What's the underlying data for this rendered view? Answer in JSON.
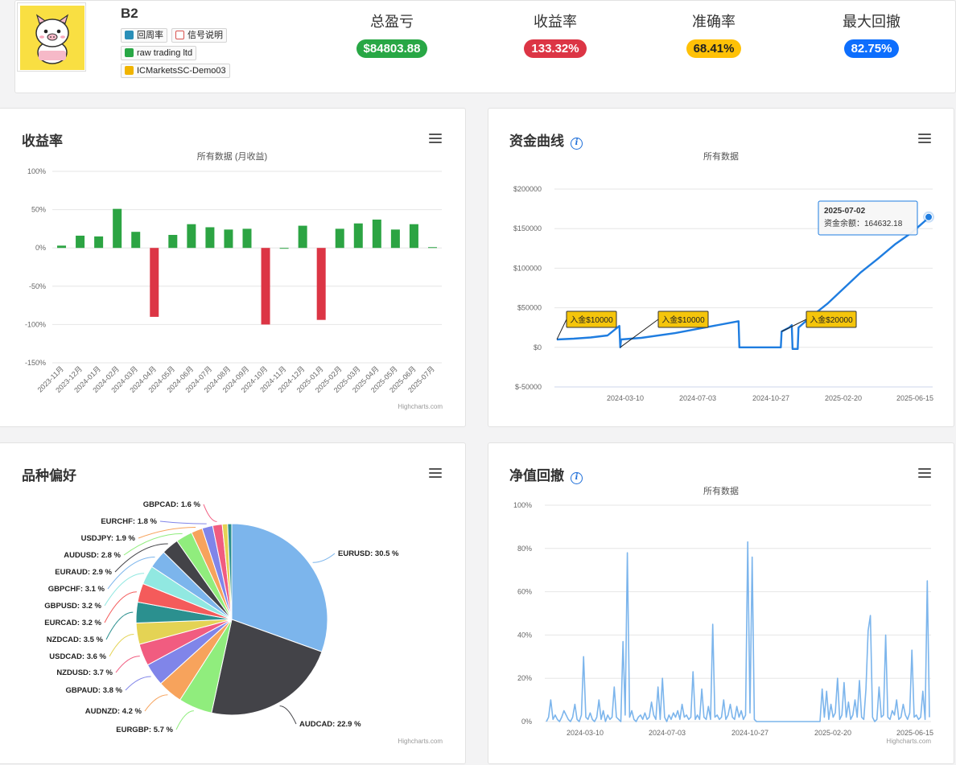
{
  "header": {
    "name": "B2",
    "tags": [
      {
        "label": "回周率",
        "icon": "user-icon",
        "color": "#2a8fb8"
      },
      {
        "label": "信号说明",
        "icon": "message-icon",
        "color": "#d9534f"
      },
      {
        "label": "raw trading ltd",
        "icon": "broker-icon",
        "color": "#28a745"
      },
      {
        "label": "ICMarketsSC-Demo03",
        "icon": "server-icon",
        "color": "#f0b400"
      }
    ],
    "stats": [
      {
        "label": "总盈亏",
        "value": "$84803.88",
        "color": "#28a745"
      },
      {
        "label": "收益率",
        "value": "133.32%",
        "color": "#dc3545"
      },
      {
        "label": "准确率",
        "value": "68.41%",
        "color": "#ffc107"
      },
      {
        "label": "最大回撤",
        "value": "82.75%",
        "color": "#0d6efd"
      }
    ]
  },
  "panels": {
    "returns": {
      "title": "收益率",
      "subtitle": "所有数据 (月收益)",
      "credit": "Highcharts.com"
    },
    "equity": {
      "title": "资金曲线",
      "subtitle": "所有数据",
      "credit": ""
    },
    "symbols": {
      "title": "品种偏好",
      "credit": "Highcharts.com"
    },
    "drawdown": {
      "title": "净值回撤",
      "subtitle": "所有数据",
      "credit": "Highcharts.com"
    }
  },
  "chart_data": [
    {
      "type": "bar",
      "title": "收益率",
      "subtitle": "所有数据 (月收益)",
      "categories": [
        "2023-11月",
        "2023-12月",
        "2024-01月",
        "2024-02月",
        "2024-03月",
        "2024-04月",
        "2024-05月",
        "2024-06月",
        "2024-07月",
        "2024-08月",
        "2024-09月",
        "2024-10月",
        "2024-11月",
        "2024-12月",
        "2025-01月",
        "2025-02月",
        "2025-03月",
        "2025-04月",
        "2025-05月",
        "2025-06月",
        "2025-07月"
      ],
      "values": [
        3,
        16,
        15,
        51,
        21,
        -90,
        17,
        31,
        27,
        24,
        25,
        -100,
        0,
        29,
        -94,
        25,
        32,
        37,
        24,
        31,
        1
      ],
      "yticks": [
        "100%",
        "50%",
        "0%",
        "-50%",
        "-100%",
        "-150%"
      ],
      "ylim": [
        -150,
        100
      ],
      "colors": {
        "positive": "#2ca443",
        "negative": "#dc3545"
      }
    },
    {
      "type": "line",
      "title": "资金曲线",
      "subtitle": "所有数据",
      "x_ticks": [
        "2024-03-10",
        "2024-07-03",
        "2024-10-27",
        "2025-02-20",
        "2025-06-15"
      ],
      "yticks": [
        "$200000",
        "$150000",
        "$100000",
        "$50000",
        "$0",
        "$-50000"
      ],
      "ylim": [
        -50000,
        200000
      ],
      "series": [
        {
          "values": [
            [
              0,
              10000
            ],
            [
              20,
              11000
            ],
            [
              40,
              12500
            ],
            [
              60,
              15000
            ],
            [
              74,
              27000
            ],
            [
              75,
              0
            ],
            [
              76,
              10000
            ],
            [
              100,
              12000
            ],
            [
              140,
              18000
            ],
            [
              180,
              26000
            ],
            [
              215,
              33000
            ],
            [
              216,
              0
            ],
            [
              265,
              0
            ],
            [
              266,
              20000
            ],
            [
              275,
              25000
            ],
            [
              278,
              28000
            ],
            [
              279,
              -2000
            ],
            [
              285,
              -2000
            ],
            [
              286,
              25000
            ],
            [
              300,
              38000
            ],
            [
              320,
              55000
            ],
            [
              340,
              75000
            ],
            [
              360,
              95000
            ],
            [
              380,
              112000
            ],
            [
              400,
              130000
            ],
            [
              420,
              145000
            ],
            [
              436,
              160000
            ],
            [
              440,
              164632
            ]
          ]
        }
      ],
      "flags": [
        {
          "label": "入金$10000"
        },
        {
          "label": "入金$10000"
        },
        {
          "label": "入金$20000"
        }
      ],
      "tooltip": {
        "date": "2025-07-02",
        "label": "资金余额：",
        "value": "164632.18"
      },
      "color": "#1f7de0"
    },
    {
      "type": "pie",
      "title": "品种偏好",
      "slices": [
        {
          "name": "EURUSD",
          "value": 30.5,
          "label": "EURUSD: 30.5 %",
          "color": "#7cb5ec"
        },
        {
          "name": "AUDCAD",
          "value": 22.9,
          "label": "AUDCAD: 22.9 %",
          "color": "#434348"
        },
        {
          "name": "EURGBP",
          "value": 5.7,
          "label": "EURGBP: 5.7 %",
          "color": "#90ed7d"
        },
        {
          "name": "AUDNZD",
          "value": 4.2,
          "label": "AUDNZD: 4.2 %",
          "color": "#f7a35c"
        },
        {
          "name": "GBPAUD",
          "value": 3.8,
          "label": "GBPAUD: 3.8 %",
          "color": "#8085e9"
        },
        {
          "name": "NZDUSD",
          "value": 3.7,
          "label": "NZDUSD: 3.7 %",
          "color": "#f15c80"
        },
        {
          "name": "USDCAD",
          "value": 3.6,
          "label": "USDCAD: 3.6 %",
          "color": "#e4d354"
        },
        {
          "name": "NZDCAD",
          "value": 3.5,
          "label": "NZDCAD: 3.5 %",
          "color": "#2b908f"
        },
        {
          "name": "EURCAD",
          "value": 3.2,
          "label": "EURCAD: 3.2 %",
          "color": "#f45b5b"
        },
        {
          "name": "GBPUSD",
          "value": 3.2,
          "label": "GBPUSD: 3.2 %",
          "color": "#91e8e1"
        },
        {
          "name": "GBPCHF",
          "value": 3.1,
          "label": "GBPCHF: 3.1 %",
          "color": "#7cb5ec"
        },
        {
          "name": "EURAUD",
          "value": 2.9,
          "label": "EURAUD: 2.9 %",
          "color": "#434348"
        },
        {
          "name": "AUDUSD",
          "value": 2.8,
          "label": "AUDUSD: 2.8 %",
          "color": "#90ed7d"
        },
        {
          "name": "USDJPY",
          "value": 1.9,
          "label": "USDJPY: 1.9 %",
          "color": "#f7a35c"
        },
        {
          "name": "EURCHF",
          "value": 1.8,
          "label": "EURCHF: 1.8 %",
          "color": "#8085e9"
        },
        {
          "name": "GBPCAD",
          "value": 1.6,
          "label": "GBPCAD: 1.6 %",
          "color": "#f15c80"
        },
        {
          "name": "other-1",
          "value": 0.9,
          "label": "",
          "color": "#e4d354"
        },
        {
          "name": "other-2",
          "value": 0.7,
          "label": "",
          "color": "#2b908f"
        }
      ]
    },
    {
      "type": "area",
      "title": "净值回撤",
      "subtitle": "所有数据",
      "x_ticks": [
        "2024-03-10",
        "2024-07-03",
        "2024-10-27",
        "2025-02-20",
        "2025-06-15"
      ],
      "yticks": [
        "100%",
        "80%",
        "60%",
        "40%",
        "20%",
        "0%"
      ],
      "ylim": [
        0,
        100
      ],
      "color": "#7cb5ec",
      "series": [
        {
          "values": [
            0,
            2,
            10,
            1,
            3,
            1,
            0,
            2,
            5,
            3,
            1,
            0,
            2,
            8,
            1,
            0,
            3,
            30,
            2,
            1,
            4,
            1,
            0,
            2,
            10,
            1,
            5,
            0,
            3,
            1,
            2,
            16,
            2,
            1,
            0,
            37,
            3,
            78,
            2,
            5,
            1,
            0,
            2,
            3,
            1,
            4,
            1,
            2,
            9,
            3,
            1,
            16,
            1,
            20,
            2,
            0,
            3,
            1,
            4,
            2,
            5,
            1,
            8,
            2,
            3,
            1,
            2,
            23,
            1,
            3,
            1,
            15,
            2,
            1,
            7,
            1,
            45,
            2,
            3,
            1,
            2,
            10,
            1,
            3,
            8,
            2,
            1,
            7,
            2,
            5,
            1,
            3,
            83,
            4,
            76,
            1,
            0,
            0,
            0,
            0,
            0,
            0,
            0,
            0,
            0,
            0,
            0,
            0,
            0,
            0,
            0,
            0,
            0,
            0,
            0,
            0,
            0,
            0,
            0,
            0,
            0,
            0,
            0,
            0,
            0,
            0,
            15,
            2,
            14,
            1,
            8,
            2,
            4,
            20,
            1,
            3,
            18,
            2,
            9,
            1,
            3,
            10,
            2,
            19,
            2,
            1,
            15,
            42,
            49,
            2,
            0,
            1,
            16,
            2,
            3,
            40,
            2,
            1,
            5,
            3,
            10,
            1,
            2,
            8,
            3,
            1,
            4,
            33,
            2,
            3,
            1,
            2,
            14,
            1,
            65,
            2
          ]
        }
      ]
    }
  ]
}
